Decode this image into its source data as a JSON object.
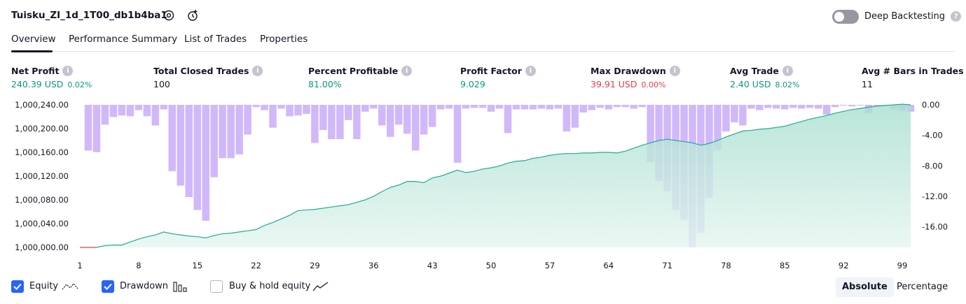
{
  "header": {
    "title": "Tuisku_ZI_1d_1T00_db1b4ba1",
    "deep_backtesting_label": "Deep Backtesting"
  },
  "tabs": [
    {
      "label": "Overview",
      "active": true
    },
    {
      "label": "Performance Summary",
      "active": false
    },
    {
      "label": "List of Trades",
      "active": false
    },
    {
      "label": "Properties",
      "active": false
    }
  ],
  "metrics": {
    "net_profit": {
      "label": "Net Profit",
      "value": "240.39 USD",
      "pct": "0.02%"
    },
    "total_closed_trades": {
      "label": "Total Closed Trades",
      "value": "100"
    },
    "percent_profitable": {
      "label": "Percent Profitable",
      "value": "81.00%"
    },
    "profit_factor": {
      "label": "Profit Factor",
      "value": "9.029"
    },
    "max_drawdown": {
      "label": "Max Drawdown",
      "value": "39.91 USD",
      "pct": "0.00%"
    },
    "avg_trade": {
      "label": "Avg Trade",
      "value": "2.40 USD",
      "pct": "8.02%"
    },
    "avg_bars": {
      "label": "Avg # Bars in Trades",
      "value": "11"
    }
  },
  "colors": {
    "equity_line": "#22ab94",
    "equity_fill": "#d4efe7",
    "drawdown_bar": "#d1b8fb",
    "initial_line": "#f23645",
    "checkbox": "#2962ff",
    "positive": "#089981",
    "negative": "#f23645"
  },
  "chart_data": {
    "type": "area",
    "x_ticks": [
      "1",
      "8",
      "15",
      "22",
      "29",
      "36",
      "43",
      "50",
      "57",
      "64",
      "71",
      "78",
      "85",
      "92",
      "99"
    ],
    "y_left_ticks": [
      "1,000,240.00",
      "1,000,200.00",
      "1,000,160.00",
      "1,000,120.00",
      "1,000,080.00",
      "1,000,040.00",
      "1,000,000.00"
    ],
    "y_right_ticks": [
      "0.00",
      "-4.00",
      "-8.00",
      "-12.00",
      "-16.00"
    ],
    "y_left_range": [
      1000000,
      1000240
    ],
    "y_right_range": [
      -18.7,
      0
    ],
    "x_range": [
      1,
      100
    ],
    "series": [
      {
        "name": "Equity",
        "kind": "area",
        "axis": "left",
        "x": [
          1,
          3,
          4,
          5,
          6,
          7,
          8,
          9,
          10,
          11,
          12,
          13,
          14,
          15,
          16,
          17,
          18,
          19,
          20,
          21,
          22,
          23,
          24,
          25,
          26,
          27,
          28,
          29,
          30,
          31,
          32,
          33,
          34,
          35,
          36,
          37,
          38,
          39,
          40,
          41,
          42,
          43,
          44,
          45,
          46,
          47,
          48,
          49,
          50,
          51,
          52,
          53,
          54,
          55,
          56,
          57,
          58,
          59,
          60,
          61,
          62,
          63,
          64,
          65,
          66,
          67,
          68,
          69,
          70,
          71,
          72,
          73,
          74,
          75,
          76,
          77,
          78,
          79,
          80,
          81,
          82,
          83,
          84,
          85,
          86,
          87,
          88,
          89,
          90,
          91,
          92,
          93,
          94,
          95,
          96,
          97,
          98,
          99,
          100
        ],
        "values": [
          1000000,
          1000000,
          1000003,
          1000004,
          1000004,
          1000009,
          1000014,
          1000018,
          1000021,
          1000026,
          1000023,
          1000021,
          1000019,
          1000018,
          1000016,
          1000020,
          1000023,
          1000024,
          1000026,
          1000028,
          1000030,
          1000037,
          1000042,
          1000048,
          1000054,
          1000062,
          1000063,
          1000064,
          1000066,
          1000068,
          1000070,
          1000072,
          1000076,
          1000080,
          1000086,
          1000094,
          1000101,
          1000105,
          1000111,
          1000111,
          1000109,
          1000117,
          1000120,
          1000125,
          1000130,
          1000126,
          1000128,
          1000132,
          1000134,
          1000137,
          1000142,
          1000145,
          1000146,
          1000150,
          1000152,
          1000155,
          1000157,
          1000158,
          1000158,
          1000159,
          1000159,
          1000160,
          1000160,
          1000159,
          1000162,
          1000167,
          1000172,
          1000176,
          1000180,
          1000182,
          1000180,
          1000178,
          1000176,
          1000172,
          1000175,
          1000180,
          1000186,
          1000191,
          1000196,
          1000197,
          1000199,
          1000200,
          1000202,
          1000204,
          1000208,
          1000212,
          1000216,
          1000219,
          1000222,
          1000226,
          1000229,
          1000232,
          1000234,
          1000236,
          1000238,
          1000239,
          1000240,
          1000241,
          1000240
        ]
      },
      {
        "name": "Drawdown",
        "kind": "bar",
        "axis": "right",
        "x": [
          1,
          2,
          3,
          4,
          5,
          6,
          7,
          8,
          9,
          10,
          11,
          12,
          13,
          14,
          15,
          16,
          17,
          18,
          19,
          20,
          21,
          22,
          23,
          24,
          25,
          26,
          27,
          28,
          29,
          30,
          31,
          32,
          33,
          34,
          35,
          36,
          37,
          38,
          39,
          40,
          41,
          42,
          43,
          44,
          45,
          46,
          47,
          48,
          49,
          50,
          51,
          52,
          53,
          54,
          55,
          56,
          57,
          58,
          59,
          60,
          61,
          62,
          63,
          64,
          65,
          66,
          67,
          68,
          69,
          70,
          71,
          72,
          73,
          74,
          75,
          76,
          77,
          78,
          79,
          80,
          81,
          82,
          83,
          84,
          85,
          86,
          87,
          88,
          89,
          90,
          91,
          92,
          93,
          94,
          95,
          96,
          97,
          98,
          99,
          100
        ],
        "values": [
          0,
          -6.0,
          -6.2,
          -2.6,
          -1.6,
          -1.4,
          -1.5,
          -0.7,
          -1.5,
          -2.7,
          -0.6,
          -8.7,
          -10.6,
          -12.1,
          -13.8,
          -15.2,
          -9.5,
          -7.0,
          -7.0,
          -6.5,
          -3.9,
          -0.3,
          -0.7,
          -3.0,
          -0.5,
          -1.5,
          -1.4,
          -1.2,
          -5.0,
          -3.3,
          -4.5,
          -4.5,
          -2.0,
          -4.5,
          -0.9,
          -0.5,
          -2.7,
          -4.2,
          -2.6,
          -3.8,
          -6.0,
          -3.9,
          -2.9,
          -0.6,
          -0.5,
          -7.6,
          -0.5,
          -0.4,
          -0.4,
          -0.9,
          -0.5,
          -3.7,
          -0.6,
          -0.6,
          -0.6,
          -0.5,
          -0.6,
          -0.5,
          -3.5,
          -3.0,
          -1.0,
          -0.7,
          -0.4,
          -0.6,
          -0.3,
          -0.3,
          -0.5,
          -0.3,
          -7.5,
          -10.0,
          -11.3,
          -13.8,
          -15.1,
          -18.7,
          -16.8,
          -12.2,
          -6.0,
          -3.5,
          -2.3,
          -2.7,
          -0.5,
          -0.7,
          -0.4,
          -0.5,
          -0.6,
          -0.4,
          -0.5,
          -0.4,
          -0.5,
          -1.3,
          -0.3,
          -0.1,
          -0.2,
          -0.1,
          -1.1,
          -0.3,
          -0.1,
          -0.6,
          -0.8,
          -0.9
        ]
      }
    ]
  },
  "legend": {
    "equity": {
      "label": "Equity",
      "checked": true
    },
    "drawdown": {
      "label": "Drawdown",
      "checked": true
    },
    "buy_hold": {
      "label": "Buy & hold equity",
      "checked": false
    }
  },
  "modes": {
    "absolute": "Absolute",
    "percentage": "Percentage",
    "selected": "Absolute"
  }
}
